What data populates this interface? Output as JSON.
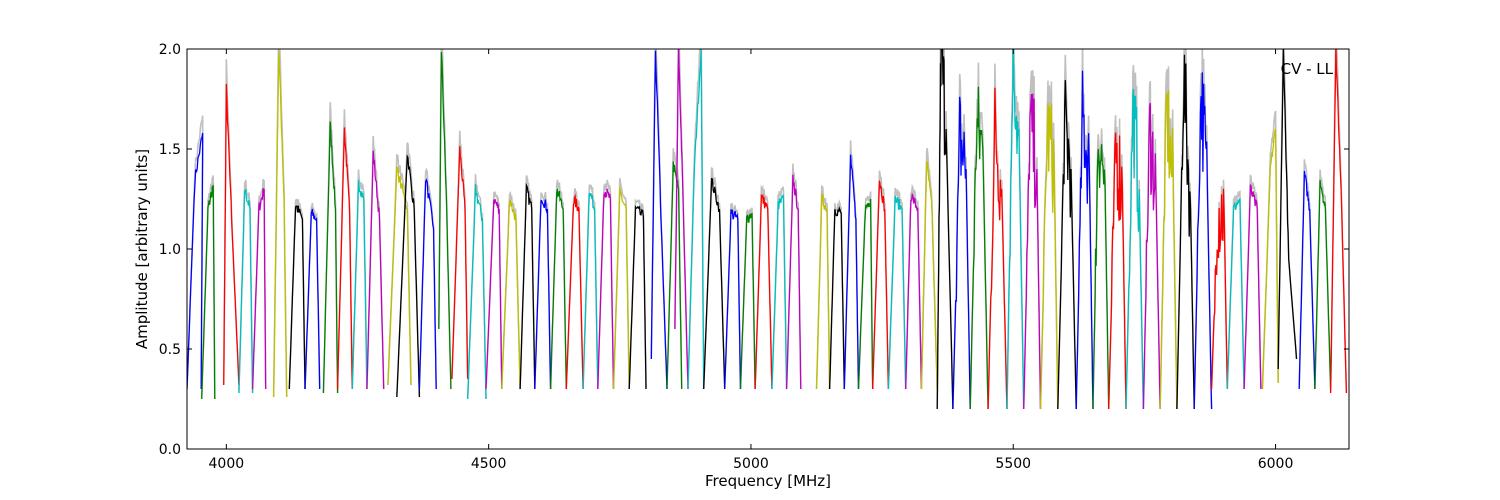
{
  "chart_data": {
    "type": "line",
    "title": "",
    "annotation": "CV - LL",
    "xlabel": "Frequency [MHz]",
    "ylabel": "Amplitude [arbitrary units]",
    "xlim": [
      3925,
      6140
    ],
    "ylim": [
      0.0,
      2.0
    ],
    "xticks": [
      4000,
      4500,
      5000,
      5500,
      6000
    ],
    "yticks": [
      0.0,
      0.5,
      1.0,
      1.5,
      2.0
    ],
    "xtick_labels": [
      "4000",
      "4500",
      "5000",
      "5500",
      "6000"
    ],
    "ytick_labels": [
      "0.0",
      "0.5",
      "1.0",
      "1.5",
      "2.0"
    ],
    "grid": false,
    "channel_width_mhz": 26,
    "color_cycle": [
      "#0000ff",
      "#008000",
      "#ff0000",
      "#00bfbf",
      "#bf00bf",
      "#bfbf00",
      "#000000"
    ],
    "background_series_color": "#c0c0c0",
    "series": [
      {
        "x": [
          3925,
          3940,
          3955,
          3952
        ],
        "y": [
          0.3,
          1.35,
          1.58,
          0.3
        ],
        "color": "#0000ff"
      },
      {
        "x": [
          3953,
          3965,
          3975,
          3978
        ],
        "y": [
          0.25,
          1.2,
          1.32,
          0.25
        ],
        "color": "#008000"
      },
      {
        "x": [
          3995,
          4000,
          4010,
          4024
        ],
        "y": [
          0.32,
          1.8,
          1.15,
          0.32
        ],
        "color": "#ff0000"
      },
      {
        "x": [
          4024,
          4035,
          4045,
          4050
        ],
        "y": [
          0.28,
          1.3,
          1.2,
          0.28
        ],
        "color": "#00bfbf"
      },
      {
        "x": [
          4050,
          4062,
          4072,
          4075
        ],
        "y": [
          0.3,
          1.2,
          1.3,
          0.3
        ],
        "color": "#bf00bf"
      },
      {
        "x": [
          4090,
          4100,
          4110,
          4115
        ],
        "y": [
          0.26,
          2.0,
          1.25,
          0.26
        ],
        "color": "#bfbf00"
      },
      {
        "x": [
          4120,
          4132,
          4145,
          4150
        ],
        "y": [
          0.3,
          1.22,
          1.15,
          0.3
        ],
        "color": "#000000"
      },
      {
        "x": [
          4150,
          4162,
          4172,
          4178
        ],
        "y": [
          0.3,
          1.18,
          1.15,
          0.3
        ],
        "color": "#0000ff"
      },
      {
        "x": [
          4185,
          4198,
          4208,
          4212
        ],
        "y": [
          0.28,
          1.62,
          1.2,
          0.28
        ],
        "color": "#008000"
      },
      {
        "x": [
          4212,
          4225,
          4235,
          4240
        ],
        "y": [
          0.3,
          1.6,
          1.18,
          0.3
        ],
        "color": "#ff0000"
      },
      {
        "x": [
          4240,
          4252,
          4262,
          4268
        ],
        "y": [
          0.3,
          1.33,
          1.25,
          0.3
        ],
        "color": "#00bfbf"
      },
      {
        "x": [
          4268,
          4280,
          4292,
          4300
        ],
        "y": [
          0.3,
          1.48,
          1.15,
          0.3
        ],
        "color": "#bf00bf"
      },
      {
        "x": [
          4308,
          4325,
          4345,
          4352
        ],
        "y": [
          0.32,
          1.4,
          1.2,
          0.32
        ],
        "color": "#bfbf00"
      },
      {
        "x": [
          4325,
          4345,
          4358,
          4368
        ],
        "y": [
          0.26,
          1.48,
          1.2,
          0.26
        ],
        "color": "#000000"
      },
      {
        "x": [
          4368,
          4380,
          4395,
          4400
        ],
        "y": [
          0.3,
          1.36,
          1.1,
          0.3
        ],
        "color": "#0000ff"
      },
      {
        "x": [
          4405,
          4410,
          4420,
          4428
        ],
        "y": [
          0.6,
          2.0,
          1.2,
          0.3
        ],
        "color": "#008000"
      },
      {
        "x": [
          4430,
          4445,
          4455,
          4460
        ],
        "y": [
          0.35,
          1.5,
          1.2,
          0.35
        ],
        "color": "#ff0000"
      },
      {
        "x": [
          4460,
          4475,
          4488,
          4495
        ],
        "y": [
          0.25,
          1.3,
          1.15,
          0.25
        ],
        "color": "#00bfbf"
      },
      {
        "x": [
          4495,
          4510,
          4520,
          4525
        ],
        "y": [
          0.3,
          1.25,
          1.2,
          0.3
        ],
        "color": "#bf00bf"
      },
      {
        "x": [
          4525,
          4540,
          4552,
          4560
        ],
        "y": [
          0.3,
          1.25,
          1.15,
          0.3
        ],
        "color": "#bfbf00"
      },
      {
        "x": [
          4560,
          4572,
          4582,
          4588
        ],
        "y": [
          0.3,
          1.3,
          1.2,
          0.3
        ],
        "color": "#000000"
      },
      {
        "x": [
          4588,
          4600,
          4612,
          4618
        ],
        "y": [
          0.3,
          1.27,
          1.2,
          0.3
        ],
        "color": "#0000ff"
      },
      {
        "x": [
          4618,
          4630,
          4642,
          4648
        ],
        "y": [
          0.3,
          1.3,
          1.2,
          0.3
        ],
        "color": "#008000"
      },
      {
        "x": [
          4648,
          4662,
          4672,
          4680
        ],
        "y": [
          0.3,
          1.25,
          1.2,
          0.3
        ],
        "color": "#ff0000"
      },
      {
        "x": [
          4680,
          4692,
          4702,
          4708
        ],
        "y": [
          0.3,
          1.3,
          1.2,
          0.3
        ],
        "color": "#00bfbf"
      },
      {
        "x": [
          4708,
          4720,
          4732,
          4738
        ],
        "y": [
          0.3,
          1.3,
          1.25,
          0.3
        ],
        "color": "#bf00bf"
      },
      {
        "x": [
          4738,
          4750,
          4762,
          4768
        ],
        "y": [
          0.3,
          1.28,
          1.2,
          0.3
        ],
        "color": "#bfbf00"
      },
      {
        "x": [
          4768,
          4780,
          4795,
          4800
        ],
        "y": [
          0.3,
          1.2,
          1.16,
          0.3
        ],
        "color": "#000000"
      },
      {
        "x": [
          4810,
          4818,
          4830,
          4840
        ],
        "y": [
          0.45,
          2.0,
          1.05,
          0.3
        ],
        "color": "#0000ff"
      },
      {
        "x": [
          4840,
          4852,
          4862,
          4868
        ],
        "y": [
          0.3,
          1.42,
          1.3,
          0.3
        ],
        "color": "#008000"
      },
      {
        "x": [
          4855,
          4862,
          4870,
          4880
        ],
        "y": [
          0.6,
          2.0,
          1.3,
          0.3
        ],
        "color": "#bf00bf"
      },
      {
        "x": [
          4880,
          4892,
          4905,
          4910
        ],
        "y": [
          0.3,
          1.4,
          2.0,
          0.3
        ],
        "color": "#00bfbf"
      },
      {
        "x": [
          4910,
          4925,
          4940,
          4950
        ],
        "y": [
          0.3,
          1.34,
          1.2,
          0.3
        ],
        "color": "#000000"
      },
      {
        "x": [
          4950,
          4962,
          4975,
          4980
        ],
        "y": [
          0.3,
          1.18,
          1.15,
          0.3
        ],
        "color": "#0000ff"
      },
      {
        "x": [
          4980,
          4992,
          5002,
          5008
        ],
        "y": [
          0.3,
          1.15,
          1.18,
          0.3
        ],
        "color": "#008000"
      },
      {
        "x": [
          5008,
          5020,
          5032,
          5040
        ],
        "y": [
          0.3,
          1.26,
          1.2,
          0.3
        ],
        "color": "#ff0000"
      },
      {
        "x": [
          5040,
          5052,
          5062,
          5068
        ],
        "y": [
          0.3,
          1.22,
          1.25,
          0.3
        ],
        "color": "#00bfbf"
      },
      {
        "x": [
          5068,
          5080,
          5090,
          5095
        ],
        "y": [
          0.3,
          1.35,
          1.2,
          0.3
        ],
        "color": "#bf00bf"
      },
      {
        "x": [
          5125,
          5135,
          5145,
          5150
        ],
        "y": [
          0.3,
          1.25,
          1.2,
          0.3
        ],
        "color": "#bfbf00"
      },
      {
        "x": [
          5150,
          5160,
          5172,
          5178
        ],
        "y": [
          0.3,
          1.2,
          1.18,
          0.3
        ],
        "color": "#000000"
      },
      {
        "x": [
          5178,
          5190,
          5200,
          5205
        ],
        "y": [
          0.3,
          1.46,
          1.15,
          0.3
        ],
        "color": "#0000ff"
      },
      {
        "x": [
          5205,
          5218,
          5228,
          5232
        ],
        "y": [
          0.3,
          1.2,
          1.25,
          0.3
        ],
        "color": "#008000"
      },
      {
        "x": [
          5232,
          5245,
          5255,
          5262
        ],
        "y": [
          0.3,
          1.35,
          1.2,
          0.3
        ],
        "color": "#ff0000"
      },
      {
        "x": [
          5262,
          5275,
          5288,
          5295
        ],
        "y": [
          0.3,
          1.25,
          1.2,
          0.3
        ],
        "color": "#00bfbf"
      },
      {
        "x": [
          5295,
          5305,
          5318,
          5325
        ],
        "y": [
          0.3,
          1.27,
          1.2,
          0.3
        ],
        "color": "#bf00bf"
      },
      {
        "x": [
          5325,
          5335,
          5345,
          5355
        ],
        "y": [
          0.3,
          1.44,
          1.2,
          0.3
        ],
        "color": "#bfbf00"
      },
      {
        "x": [
          5355,
          5362,
          5372,
          5385
        ],
        "y": [
          0.2,
          2.0,
          1.6,
          0.2
        ],
        "color": "#000000"
      },
      {
        "x": [
          5385,
          5398,
          5410,
          5418
        ],
        "y": [
          0.2,
          1.56,
          1.4,
          0.2
        ],
        "color": "#0000ff"
      },
      {
        "x": [
          5418,
          5430,
          5442,
          5452
        ],
        "y": [
          0.2,
          1.6,
          1.5,
          0.2
        ],
        "color": "#008000"
      },
      {
        "x": [
          5452,
          5465,
          5478,
          5488
        ],
        "y": [
          0.2,
          1.6,
          1.3,
          0.2
        ],
        "color": "#ff0000"
      },
      {
        "x": [
          5488,
          5500,
          5512,
          5520
        ],
        "y": [
          0.2,
          2.0,
          1.4,
          0.2
        ],
        "color": "#00bfbf"
      },
      {
        "x": [
          5520,
          5532,
          5545,
          5552
        ],
        "y": [
          0.2,
          1.6,
          1.4,
          0.2
        ],
        "color": "#bf00bf"
      },
      {
        "x": [
          5552,
          5565,
          5578,
          5585
        ],
        "y": [
          0.2,
          1.6,
          1.4,
          0.2
        ],
        "color": "#bfbf00"
      },
      {
        "x": [
          5585,
          5598,
          5610,
          5620
        ],
        "y": [
          0.2,
          1.6,
          1.4,
          0.2
        ],
        "color": "#000000"
      },
      {
        "x": [
          5620,
          5632,
          5645,
          5652
        ],
        "y": [
          0.2,
          1.65,
          1.4,
          0.2
        ],
        "color": "#0000ff"
      },
      {
        "x": [
          5652,
          5662,
          5675,
          5682
        ],
        "y": [
          0.2,
          1.6,
          1.3,
          0.2
        ],
        "color": "#008000"
      },
      {
        "x": [
          5682,
          5695,
          5708,
          5715
        ],
        "y": [
          0.2,
          1.5,
          1.3,
          0.2
        ],
        "color": "#ff0000"
      },
      {
        "x": [
          5715,
          5728,
          5740,
          5748
        ],
        "y": [
          0.2,
          1.7,
          1.3,
          0.2
        ],
        "color": "#00bfbf"
      },
      {
        "x": [
          5748,
          5760,
          5772,
          5780
        ],
        "y": [
          0.2,
          1.6,
          1.3,
          0.2
        ],
        "color": "#bf00bf"
      },
      {
        "x": [
          5780,
          5792,
          5805,
          5812
        ],
        "y": [
          0.2,
          1.7,
          1.3,
          0.2
        ],
        "color": "#bfbf00"
      },
      {
        "x": [
          5812,
          5825,
          5838,
          5845
        ],
        "y": [
          0.2,
          1.85,
          1.2,
          0.2
        ],
        "color": "#000000"
      },
      {
        "x": [
          5845,
          5858,
          5870,
          5878
        ],
        "y": [
          0.2,
          1.8,
          1.3,
          0.2
        ],
        "color": "#0000ff"
      },
      {
        "x": [
          5878,
          5890,
          5902,
          5908
        ],
        "y": [
          0.3,
          1.2,
          1.18,
          0.3
        ],
        "color": "#ff0000"
      },
      {
        "x": [
          5908,
          5920,
          5932,
          5940
        ],
        "y": [
          0.3,
          1.2,
          1.25,
          0.3
        ],
        "color": "#00bfbf"
      },
      {
        "x": [
          5940,
          5952,
          5965,
          5972
        ],
        "y": [
          0.3,
          1.3,
          1.2,
          0.3
        ],
        "color": "#bf00bf"
      },
      {
        "x": [
          5975,
          5990,
          6000,
          6005
        ],
        "y": [
          0.3,
          1.4,
          1.6,
          0.33
        ],
        "color": "#bfbf00"
      },
      {
        "x": [
          6005,
          6015,
          6025,
          6040
        ],
        "y": [
          0.4,
          2.0,
          0.95,
          0.45
        ],
        "color": "#000000"
      },
      {
        "x": [
          6045,
          6055,
          6065,
          6075
        ],
        "y": [
          0.3,
          1.38,
          1.2,
          0.3
        ],
        "color": "#0000ff"
      },
      {
        "x": [
          6075,
          6085,
          6095,
          6105
        ],
        "y": [
          0.3,
          1.35,
          1.2,
          0.3
        ],
        "color": "#008000"
      },
      {
        "x": [
          6105,
          6115,
          6125,
          6135
        ],
        "y": [
          0.28,
          2.0,
          1.3,
          0.28
        ],
        "color": "#ff0000"
      }
    ]
  }
}
